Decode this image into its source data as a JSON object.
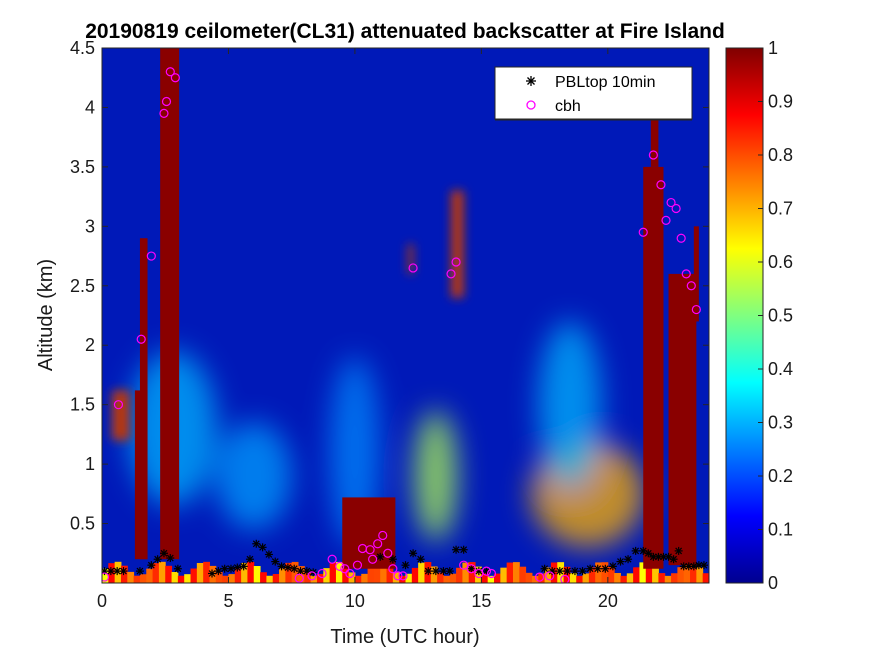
{
  "chart_data": {
    "type": "heatmap",
    "title": "20190819 ceilometer(CL31) attenuated backscatter at Fire Island",
    "xlabel": "Time (UTC hour)",
    "ylabel": "Altitude (km)",
    "xlim": [
      0,
      24
    ],
    "ylim": [
      0,
      4.5
    ],
    "xticks": [
      "0",
      "5",
      "10",
      "15",
      "20"
    ],
    "yticks": [
      "0.5",
      "1",
      "1.5",
      "2",
      "2.5",
      "3",
      "3.5",
      "4",
      "4.5"
    ],
    "colorbar": {
      "colormap": "jet",
      "range": [
        0,
        1
      ],
      "ticks": [
        "0",
        "0.1",
        "0.2",
        "0.3",
        "0.4",
        "0.5",
        "0.6",
        "0.7",
        "0.8",
        "0.9",
        "1"
      ]
    },
    "legend": {
      "placement": "top-right",
      "entries": [
        {
          "label": "PBLtop 10min",
          "marker": "asterisk",
          "color": "#000000"
        },
        {
          "label": "cbh",
          "marker": "circle",
          "color": "#ff00ff"
        }
      ]
    },
    "features": {
      "cloud_columns": [
        {
          "x0": 1.3,
          "x1": 1.8,
          "y0": 0.2,
          "y1": 1.62
        },
        {
          "x0": 1.5,
          "x1": 1.8,
          "y0": 0.2,
          "y1": 2.9
        },
        {
          "x0": 2.3,
          "x1": 3.05,
          "y0": 0.2,
          "y1": 4.5
        },
        {
          "x0": 9.5,
          "x1": 11.6,
          "y0": 0.12,
          "y1": 0.72
        },
        {
          "x0": 21.4,
          "x1": 22.2,
          "y0": 0.12,
          "y1": 3.5
        },
        {
          "x0": 21.7,
          "x1": 22.0,
          "y0": 3.5,
          "y1": 4.1
        },
        {
          "x0": 22.4,
          "x1": 23.5,
          "y0": 0.15,
          "y1": 2.6
        },
        {
          "x0": 23.4,
          "x1": 23.6,
          "y0": 2.2,
          "y1": 3.0
        }
      ],
      "aerosol_plumes": [
        {
          "x": 2.8,
          "y": 1.3,
          "width": 3.5,
          "height": 1.3,
          "level": 0.3
        },
        {
          "x": 6.0,
          "y": 0.9,
          "width": 3.0,
          "height": 0.9,
          "level": 0.28
        },
        {
          "x": 10.0,
          "y": 1.1,
          "width": 2.0,
          "height": 1.6,
          "level": 0.26
        },
        {
          "x": 13.2,
          "y": 0.9,
          "width": 1.7,
          "height": 1.1,
          "level": 0.55
        },
        {
          "x": 19.2,
          "y": 0.75,
          "width": 4.5,
          "height": 0.9,
          "level": 0.7
        },
        {
          "x": 18.5,
          "y": 1.5,
          "width": 2.5,
          "height": 1.4,
          "level": 0.3
        }
      ],
      "elevated_layers": [
        {
          "x0": 0.4,
          "x1": 1.1,
          "y0": 1.2,
          "y1": 1.62
        },
        {
          "x0": 12.1,
          "x1": 12.3,
          "y0": 2.6,
          "y1": 2.85
        },
        {
          "x0": 13.8,
          "x1": 14.3,
          "y0": 2.4,
          "y1": 3.3
        }
      ]
    },
    "series": [
      {
        "name": "PBLtop 10min",
        "x": [
          0.1,
          0.35,
          0.6,
          0.85,
          1.5,
          1.95,
          2.2,
          2.45,
          2.7,
          3.0,
          4.35,
          4.6,
          4.85,
          5.1,
          5.35,
          5.6,
          5.85,
          6.1,
          6.35,
          6.6,
          6.85,
          7.1,
          7.35,
          7.6,
          7.85,
          8.1,
          8.35,
          11.0,
          11.5,
          12.0,
          12.3,
          12.6,
          12.9,
          13.2,
          13.5,
          13.75,
          14.0,
          14.3,
          14.6,
          14.9,
          15.2,
          17.5,
          17.8,
          18.1,
          18.4,
          18.7,
          19.0,
          19.3,
          19.6,
          19.9,
          20.2,
          20.5,
          20.8,
          21.1,
          21.4,
          21.6,
          21.8,
          22.0,
          22.2,
          22.4,
          22.6,
          22.8,
          23.0,
          23.2,
          23.4,
          23.6,
          23.8
        ],
        "y": [
          0.1,
          0.1,
          0.1,
          0.1,
          0.1,
          0.15,
          0.2,
          0.25,
          0.21,
          0.12,
          0.08,
          0.1,
          0.12,
          0.12,
          0.13,
          0.14,
          0.2,
          0.33,
          0.3,
          0.24,
          0.18,
          0.14,
          0.13,
          0.12,
          0.1,
          0.1,
          0.09,
          0.22,
          0.2,
          0.15,
          0.25,
          0.2,
          0.1,
          0.1,
          0.1,
          0.1,
          0.28,
          0.28,
          0.12,
          0.1,
          0.1,
          0.12,
          0.1,
          0.1,
          0.1,
          0.1,
          0.1,
          0.12,
          0.12,
          0.12,
          0.14,
          0.18,
          0.2,
          0.27,
          0.27,
          0.25,
          0.22,
          0.22,
          0.22,
          0.22,
          0.2,
          0.27,
          0.14,
          0.14,
          0.14,
          0.15,
          0.15
        ]
      },
      {
        "name": "cbh",
        "x": [
          0.1,
          0.65,
          2.45,
          2.55,
          2.7,
          2.9,
          1.55,
          1.95,
          7.8,
          8.3,
          8.7,
          9.1,
          9.4,
          9.6,
          9.8,
          10.1,
          10.3,
          10.6,
          10.7,
          10.9,
          11.1,
          11.3,
          11.5,
          11.7,
          11.9,
          12.3,
          13.8,
          14.0,
          14.3,
          14.6,
          14.9,
          15.2,
          15.4,
          17.3,
          17.7,
          18.3,
          21.4,
          21.8,
          22.1,
          22.3,
          22.5,
          22.7,
          22.9,
          23.1,
          23.3,
          23.5
        ],
        "y": [
          0.05,
          1.5,
          3.95,
          4.05,
          4.3,
          4.25,
          2.05,
          2.75,
          0.04,
          0.06,
          0.08,
          0.2,
          0.14,
          0.12,
          0.08,
          0.15,
          0.29,
          0.28,
          0.2,
          0.33,
          0.4,
          0.25,
          0.12,
          0.06,
          0.06,
          2.65,
          2.6,
          2.7,
          0.15,
          0.12,
          0.08,
          0.1,
          0.08,
          0.05,
          0.06,
          0.03,
          2.95,
          3.6,
          3.35,
          3.05,
          3.2,
          3.15,
          2.9,
          2.6,
          2.5,
          2.3
        ]
      }
    ]
  }
}
